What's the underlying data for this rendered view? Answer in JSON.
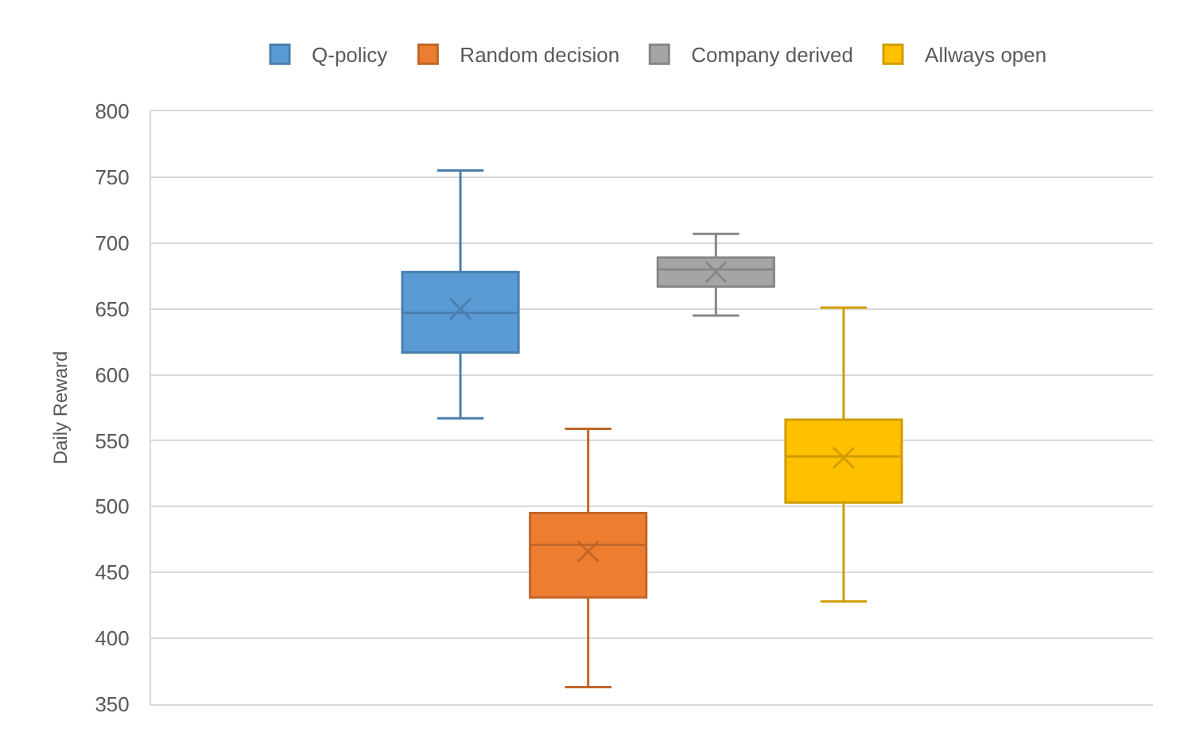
{
  "chart_data": {
    "type": "box",
    "ylabel": "Daily Reward",
    "categories": [
      null
    ],
    "ylim": [
      350,
      800
    ],
    "yticks": [
      350,
      400,
      450,
      500,
      550,
      600,
      650,
      700,
      750,
      800
    ],
    "grid": "y",
    "legend": "top",
    "tick_labels": "y",
    "marker": "cross",
    "series": [
      {
        "name": "Q-policy",
        "color": "#5b9bd5",
        "boxes": [
          {
            "low": 567,
            "q1": 617,
            "median": 647,
            "q3": 678,
            "high": 755,
            "mean": 650
          }
        ]
      },
      {
        "name": "Random decision",
        "color": "#ed7d31",
        "boxes": [
          {
            "low": 363,
            "q1": 431,
            "median": 471,
            "q3": 495,
            "high": 559,
            "mean": 466
          }
        ]
      },
      {
        "name": "Company derived",
        "color": "#a5a5a5",
        "boxes": [
          {
            "low": 645,
            "q1": 667,
            "median": 680,
            "q3": 689,
            "high": 707,
            "mean": 678
          }
        ]
      },
      {
        "name": "Allways open",
        "color": "#ffc000",
        "boxes": [
          {
            "low": 428,
            "q1": 503,
            "median": 538,
            "q3": 566,
            "high": 651,
            "mean": 537
          }
        ]
      }
    ]
  }
}
